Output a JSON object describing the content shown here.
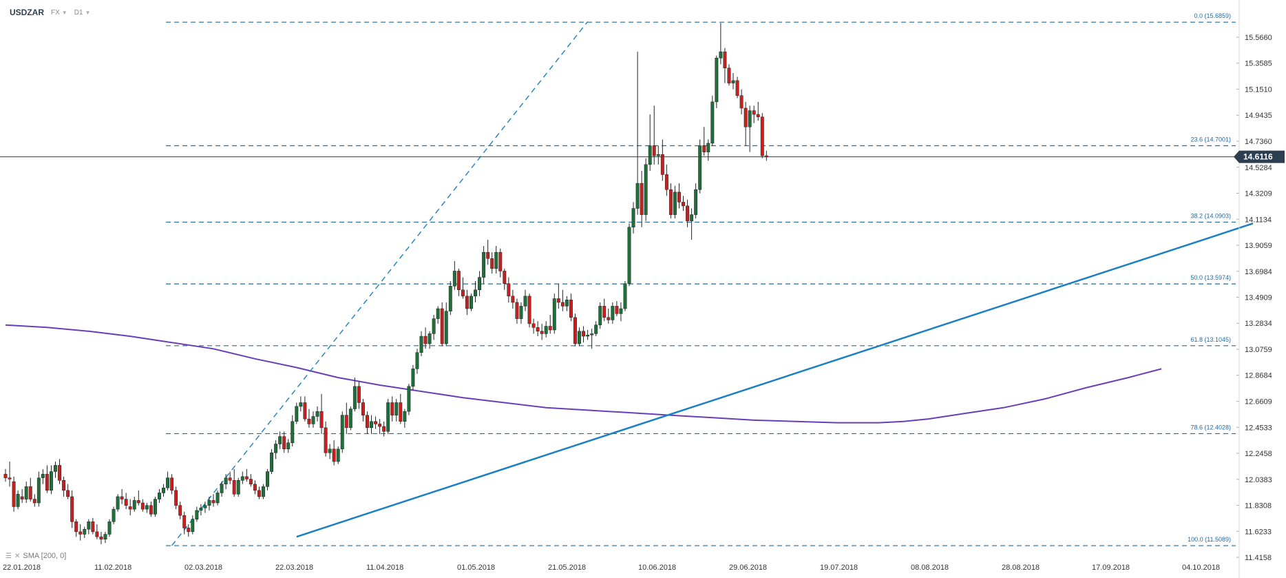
{
  "toolbar": {
    "symbol": "USDZAR",
    "market": "FX",
    "timeframe": "D1"
  },
  "indicator": {
    "label": "SMA [200, 0]",
    "color": "#6a3db8"
  },
  "colors": {
    "up": "#1e6f3a",
    "down": "#c8201f",
    "wick": "#222222",
    "fib": "#1c6aa8",
    "trend": "#1a7fc3",
    "price_line": "#2d3e50",
    "price_tag": "#2d3e50"
  },
  "chart_data": {
    "type": "candlestick",
    "instrument": "USDZAR",
    "timeframe": "D1",
    "x_ticks": [
      "22.01.2018",
      "11.02.2018",
      "02.03.2018",
      "22.03.2018",
      "11.04.2018",
      "01.05.2018",
      "21.05.2018",
      "10.06.2018",
      "29.06.2018",
      "19.07.2018",
      "08.08.2018",
      "28.08.2018",
      "17.09.2018",
      "04.10.2018"
    ],
    "y_ticks": [
      15.566,
      15.3585,
      15.151,
      14.9435,
      14.736,
      14.5284,
      14.3209,
      14.1134,
      13.9059,
      13.6984,
      13.4909,
      13.2834,
      13.0759,
      12.8684,
      12.6609,
      12.4533,
      12.2458,
      12.0383,
      11.8308,
      11.6233,
      11.4158
    ],
    "y_tick_labels": [
      "15.5660",
      "15.3585",
      "15.1510",
      "14.9435",
      "14.7360",
      "14.5284",
      "14.3209",
      "14.1134",
      "13.9059",
      "13.6984",
      "13.4909",
      "13.2834",
      "13.0759",
      "12.8684",
      "12.6609",
      "12.4533",
      "12.2458",
      "12.0383",
      "11.8308",
      "11.6233",
      "11.4158"
    ],
    "current_price": "14.6116",
    "fib_levels": [
      {
        "label": "0.0 (15.6859)",
        "value": 15.6859
      },
      {
        "label": "23.6 (14.7001)",
        "value": 14.7001
      },
      {
        "label": "38.2 (14.0903)",
        "value": 14.0903
      },
      {
        "label": "50.0 (13.5974)",
        "value": 13.5974
      },
      {
        "label": "61.8 (13.1045)",
        "value": 13.1045
      },
      {
        "label": "78.6 (12.4028)",
        "value": 12.4028
      },
      {
        "label": "100.0 (11.5089)",
        "value": 11.5089
      }
    ],
    "ohlc": [
      [
        12.08,
        12.12,
        12.02,
        12.05
      ],
      [
        12.05,
        12.18,
        11.98,
        12.04
      ],
      [
        12.02,
        12.06,
        11.78,
        11.82
      ],
      [
        11.82,
        11.95,
        11.8,
        11.92
      ],
      [
        11.9,
        11.96,
        11.85,
        11.88
      ],
      [
        11.88,
        12.02,
        11.85,
        11.98
      ],
      [
        11.98,
        12.05,
        11.86,
        11.88
      ],
      [
        11.88,
        11.92,
        11.82,
        11.85
      ],
      [
        11.85,
        12.1,
        11.82,
        12.05
      ],
      [
        12.05,
        12.12,
        12.0,
        12.08
      ],
      [
        12.08,
        12.15,
        11.93,
        11.95
      ],
      [
        11.95,
        12.15,
        11.92,
        12.1
      ],
      [
        12.1,
        12.18,
        12.05,
        12.15
      ],
      [
        12.15,
        12.2,
        12.0,
        12.03
      ],
      [
        12.03,
        12.06,
        11.9,
        11.95
      ],
      [
        11.95,
        12.0,
        11.88,
        11.9
      ],
      [
        11.9,
        11.95,
        11.65,
        11.7
      ],
      [
        11.7,
        11.72,
        11.58,
        11.62
      ],
      [
        11.62,
        11.68,
        11.55,
        11.6
      ],
      [
        11.6,
        11.66,
        11.57,
        11.64
      ],
      [
        11.64,
        11.72,
        11.6,
        11.7
      ],
      [
        11.7,
        11.73,
        11.6,
        11.62
      ],
      [
        11.62,
        11.68,
        11.56,
        11.58
      ],
      [
        11.58,
        11.62,
        11.52,
        11.56
      ],
      [
        11.56,
        11.62,
        11.53,
        11.6
      ],
      [
        11.6,
        11.72,
        11.58,
        11.7
      ],
      [
        11.7,
        11.82,
        11.68,
        11.8
      ],
      [
        11.8,
        11.92,
        11.78,
        11.9
      ],
      [
        11.9,
        11.96,
        11.84,
        11.88
      ],
      [
        11.88,
        11.93,
        11.8,
        11.83
      ],
      [
        11.82,
        11.88,
        11.75,
        11.8
      ],
      [
        11.8,
        11.9,
        11.78,
        11.87
      ],
      [
        11.87,
        11.95,
        11.83,
        11.85
      ],
      [
        11.85,
        11.88,
        11.78,
        11.8
      ],
      [
        11.8,
        11.85,
        11.77,
        11.83
      ],
      [
        11.83,
        11.86,
        11.74,
        11.76
      ],
      [
        11.76,
        11.9,
        11.74,
        11.88
      ],
      [
        11.88,
        11.96,
        11.85,
        11.93
      ],
      [
        11.93,
        12.0,
        11.9,
        11.97
      ],
      [
        11.97,
        12.1,
        11.95,
        12.05
      ],
      [
        12.05,
        12.08,
        11.92,
        11.95
      ],
      [
        11.95,
        11.98,
        11.8,
        11.83
      ],
      [
        11.83,
        11.86,
        11.72,
        11.75
      ],
      [
        11.75,
        11.78,
        11.6,
        11.65
      ],
      [
        11.65,
        11.68,
        11.58,
        11.62
      ],
      [
        11.62,
        11.75,
        11.6,
        11.72
      ],
      [
        11.72,
        11.82,
        11.7,
        11.79
      ],
      [
        11.79,
        11.84,
        11.75,
        11.81
      ],
      [
        11.81,
        11.86,
        11.77,
        11.83
      ],
      [
        11.83,
        11.9,
        11.79,
        11.87
      ],
      [
        11.87,
        11.92,
        11.82,
        11.85
      ],
      [
        11.85,
        11.95,
        11.83,
        11.93
      ],
      [
        11.93,
        12.02,
        11.9,
        12.0
      ],
      [
        12.0,
        12.08,
        11.96,
        12.05
      ],
      [
        12.05,
        12.1,
        12.0,
        12.03
      ],
      [
        12.03,
        12.12,
        11.9,
        11.92
      ],
      [
        11.92,
        12.05,
        11.9,
        12.03
      ],
      [
        12.03,
        12.1,
        12.0,
        12.06
      ],
      [
        12.06,
        12.12,
        12.02,
        12.04
      ],
      [
        12.04,
        12.08,
        11.98,
        12.0
      ],
      [
        12.0,
        12.03,
        11.92,
        11.95
      ],
      [
        11.95,
        11.98,
        11.88,
        11.9
      ],
      [
        11.9,
        12.0,
        11.88,
        11.98
      ],
      [
        11.98,
        12.12,
        11.95,
        12.1
      ],
      [
        12.1,
        12.28,
        12.08,
        12.25
      ],
      [
        12.25,
        12.35,
        12.2,
        12.32
      ],
      [
        12.32,
        12.42,
        12.28,
        12.38
      ],
      [
        12.38,
        12.42,
        12.25,
        12.28
      ],
      [
        12.28,
        12.36,
        12.25,
        12.33
      ],
      [
        12.33,
        12.55,
        12.3,
        12.5
      ],
      [
        12.5,
        12.65,
        12.48,
        12.62
      ],
      [
        12.62,
        12.7,
        12.58,
        12.65
      ],
      [
        12.65,
        12.7,
        12.5,
        12.52
      ],
      [
        12.52,
        12.6,
        12.45,
        12.48
      ],
      [
        12.48,
        12.58,
        12.45,
        12.54
      ],
      [
        12.54,
        12.62,
        12.5,
        12.58
      ],
      [
        12.58,
        12.72,
        12.4,
        12.45
      ],
      [
        12.45,
        12.5,
        12.22,
        12.25
      ],
      [
        12.25,
        12.32,
        12.2,
        12.28
      ],
      [
        12.28,
        12.35,
        12.15,
        12.18
      ],
      [
        12.18,
        12.3,
        12.16,
        12.28
      ],
      [
        12.28,
        12.58,
        12.25,
        12.55
      ],
      [
        12.55,
        12.65,
        12.4,
        12.45
      ],
      [
        12.45,
        12.62,
        12.43,
        12.6
      ],
      [
        12.6,
        12.85,
        12.58,
        12.78
      ],
      [
        12.78,
        12.82,
        12.6,
        12.65
      ],
      [
        12.65,
        12.68,
        12.5,
        12.55
      ],
      [
        12.55,
        12.58,
        12.4,
        12.45
      ],
      [
        12.45,
        12.55,
        12.4,
        12.5
      ],
      [
        12.5,
        12.54,
        12.44,
        12.48
      ],
      [
        12.48,
        12.52,
        12.4,
        12.46
      ],
      [
        12.46,
        12.5,
        12.38,
        12.42
      ],
      [
        12.42,
        12.68,
        12.4,
        12.65
      ],
      [
        12.65,
        12.7,
        12.5,
        12.55
      ],
      [
        12.55,
        12.68,
        12.5,
        12.65
      ],
      [
        12.65,
        12.72,
        12.48,
        12.5
      ],
      [
        12.5,
        12.6,
        12.45,
        12.58
      ],
      [
        12.58,
        12.8,
        12.55,
        12.78
      ],
      [
        12.78,
        12.95,
        12.75,
        12.92
      ],
      [
        12.92,
        13.08,
        12.88,
        13.05
      ],
      [
        13.05,
        13.22,
        13.02,
        13.18
      ],
      [
        13.18,
        13.25,
        13.08,
        13.12
      ],
      [
        13.12,
        13.22,
        13.08,
        13.2
      ],
      [
        13.2,
        13.35,
        13.15,
        13.32
      ],
      [
        13.32,
        13.42,
        13.28,
        13.4
      ],
      [
        13.4,
        13.45,
        13.1,
        13.12
      ],
      [
        13.12,
        13.45,
        13.1,
        13.38
      ],
      [
        13.38,
        13.62,
        13.35,
        13.58
      ],
      [
        13.58,
        13.78,
        13.55,
        13.7
      ],
      [
        13.7,
        13.72,
        13.5,
        13.55
      ],
      [
        13.55,
        13.65,
        13.48,
        13.5
      ],
      [
        13.5,
        13.55,
        13.35,
        13.4
      ],
      [
        13.4,
        13.52,
        13.38,
        13.5
      ],
      [
        13.5,
        13.62,
        13.45,
        13.55
      ],
      [
        13.55,
        13.7,
        13.5,
        13.65
      ],
      [
        13.65,
        13.9,
        13.6,
        13.85
      ],
      [
        13.85,
        13.95,
        13.75,
        13.8
      ],
      [
        13.8,
        13.85,
        13.68,
        13.72
      ],
      [
        13.72,
        13.9,
        13.68,
        13.85
      ],
      [
        13.85,
        13.88,
        13.65,
        13.7
      ],
      [
        13.7,
        13.72,
        13.55,
        13.6
      ],
      [
        13.6,
        13.65,
        13.45,
        13.5
      ],
      [
        13.5,
        13.55,
        13.4,
        13.45
      ],
      [
        13.45,
        13.48,
        13.28,
        13.32
      ],
      [
        13.32,
        13.45,
        13.28,
        13.42
      ],
      [
        13.42,
        13.55,
        13.38,
        13.5
      ],
      [
        13.5,
        13.52,
        13.25,
        13.28
      ],
      [
        13.28,
        13.32,
        13.2,
        13.25
      ],
      [
        13.25,
        13.3,
        13.18,
        13.22
      ],
      [
        13.22,
        13.28,
        13.15,
        13.2
      ],
      [
        13.2,
        13.3,
        13.17,
        13.26
      ],
      [
        13.26,
        13.35,
        13.2,
        13.23
      ],
      [
        13.23,
        13.52,
        13.2,
        13.48
      ],
      [
        13.48,
        13.6,
        13.4,
        13.45
      ],
      [
        13.45,
        13.55,
        13.38,
        13.42
      ],
      [
        13.42,
        13.5,
        13.38,
        13.47
      ],
      [
        13.47,
        13.52,
        13.3,
        13.33
      ],
      [
        13.33,
        13.36,
        13.1,
        13.12
      ],
      [
        13.12,
        13.25,
        13.1,
        13.22
      ],
      [
        13.22,
        13.26,
        13.13,
        13.18
      ],
      [
        13.18,
        13.23,
        13.15,
        13.19
      ],
      [
        13.19,
        13.24,
        13.08,
        13.2
      ],
      [
        13.2,
        13.3,
        13.18,
        13.27
      ],
      [
        13.27,
        13.45,
        13.24,
        13.42
      ],
      [
        13.42,
        13.48,
        13.3,
        13.33
      ],
      [
        13.33,
        13.4,
        13.28,
        13.31
      ],
      [
        13.31,
        13.45,
        13.28,
        13.42
      ],
      [
        13.42,
        13.46,
        13.34,
        13.36
      ],
      [
        13.36,
        13.45,
        13.3,
        13.4
      ],
      [
        13.4,
        13.62,
        13.38,
        13.6
      ],
      [
        13.6,
        14.08,
        13.58,
        14.05
      ],
      [
        14.05,
        14.25,
        14.0,
        14.2
      ],
      [
        14.2,
        15.45,
        14.15,
        14.4
      ],
      [
        14.4,
        14.5,
        14.05,
        14.15
      ],
      [
        14.15,
        14.6,
        14.1,
        14.55
      ],
      [
        14.55,
        14.95,
        14.5,
        14.7
      ],
      [
        14.7,
        15.02,
        14.55,
        14.62
      ],
      [
        14.62,
        14.7,
        14.55,
        14.63
      ],
      [
        14.63,
        14.75,
        14.42,
        14.47
      ],
      [
        14.47,
        14.55,
        14.3,
        14.35
      ],
      [
        14.35,
        14.4,
        14.12,
        14.15
      ],
      [
        14.15,
        14.38,
        14.12,
        14.33
      ],
      [
        14.33,
        14.4,
        14.2,
        14.25
      ],
      [
        14.25,
        14.3,
        14.18,
        14.22
      ],
      [
        14.22,
        14.27,
        14.05,
        14.1
      ],
      [
        14.1,
        14.2,
        13.95,
        14.15
      ],
      [
        14.15,
        14.4,
        14.12,
        14.35
      ],
      [
        14.35,
        14.75,
        14.32,
        14.7
      ],
      [
        14.7,
        14.85,
        14.62,
        14.65
      ],
      [
        14.65,
        14.75,
        14.58,
        14.72
      ],
      [
        14.72,
        15.1,
        14.7,
        15.05
      ],
      [
        15.05,
        15.42,
        15.0,
        15.4
      ],
      [
        15.4,
        15.68,
        15.35,
        15.45
      ],
      [
        15.45,
        15.48,
        15.2,
        15.32
      ],
      [
        15.32,
        15.35,
        15.18,
        15.2
      ],
      [
        15.2,
        15.28,
        15.15,
        15.22
      ],
      [
        15.22,
        15.25,
        15.08,
        15.1
      ],
      [
        15.1,
        15.15,
        14.95,
        15.0
      ],
      [
        15.0,
        15.05,
        14.7,
        14.85
      ],
      [
        14.85,
        15.02,
        14.65,
        14.98
      ],
      [
        14.98,
        15.02,
        14.88,
        14.95
      ],
      [
        14.95,
        15.05,
        14.9,
        14.93
      ],
      [
        14.93,
        14.96,
        14.6,
        14.62
      ],
      [
        14.62,
        14.66,
        14.58,
        14.61
      ]
    ],
    "sma": [
      [
        0,
        13.27
      ],
      [
        10,
        13.25
      ],
      [
        20,
        13.22
      ],
      [
        30,
        13.18
      ],
      [
        40,
        13.13
      ],
      [
        50,
        13.08
      ],
      [
        60,
        13.0
      ],
      [
        70,
        12.93
      ],
      [
        80,
        12.85
      ],
      [
        90,
        12.79
      ],
      [
        100,
        12.74
      ],
      [
        110,
        12.69
      ],
      [
        120,
        12.65
      ],
      [
        130,
        12.61
      ],
      [
        140,
        12.59
      ],
      [
        150,
        12.57
      ],
      [
        160,
        12.55
      ],
      [
        170,
        12.53
      ],
      [
        180,
        12.51
      ],
      [
        190,
        12.5
      ],
      [
        200,
        12.49
      ],
      [
        210,
        12.49
      ],
      [
        216,
        12.5
      ],
      [
        222,
        12.52
      ],
      [
        230,
        12.56
      ],
      [
        240,
        12.61
      ],
      [
        250,
        12.68
      ],
      [
        260,
        12.77
      ],
      [
        270,
        12.85
      ],
      [
        278,
        12.92
      ]
    ],
    "trendline": {
      "from": [
        70,
        11.58
      ],
      "to": [
        300,
        14.08
      ]
    },
    "dashed_diagonal": {
      "from": [
        40,
        11.51
      ],
      "to": [
        140,
        15.69
      ]
    }
  }
}
